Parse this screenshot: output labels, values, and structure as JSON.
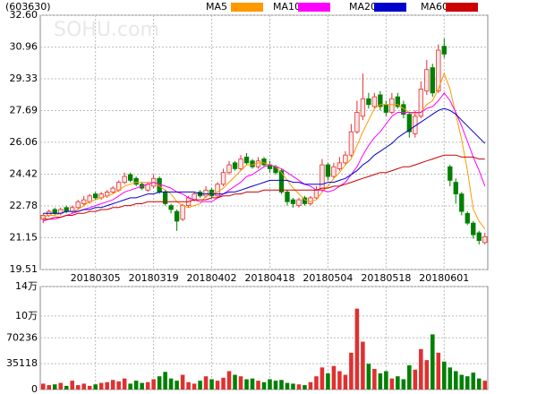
{
  "chart_data": {
    "type": "candlestick",
    "title": "(603630)",
    "watermark": "SOHU.com",
    "categories": [
      null,
      null,
      null,
      null,
      null,
      null,
      null,
      null,
      null,
      "20180305",
      null,
      null,
      null,
      null,
      null,
      null,
      null,
      null,
      null,
      "20180319",
      null,
      null,
      null,
      null,
      null,
      null,
      null,
      null,
      null,
      "20180402",
      null,
      null,
      null,
      null,
      null,
      null,
      null,
      null,
      null,
      "20180418",
      null,
      null,
      null,
      null,
      null,
      null,
      null,
      null,
      null,
      "20180504",
      null,
      null,
      null,
      null,
      null,
      null,
      null,
      null,
      null,
      "20180518",
      null,
      null,
      null,
      null,
      null,
      null,
      null,
      null,
      null,
      "20180601",
      null,
      null,
      null,
      null,
      null,
      null,
      null
    ],
    "open": [
      22.1,
      22.3,
      22.6,
      22.4,
      22.7,
      22.5,
      22.7,
      22.9,
      23.0,
      23.4,
      23.2,
      23.3,
      23.5,
      23.6,
      24.0,
      24.4,
      24.2,
      23.9,
      23.6,
      23.8,
      24.2,
      23.5,
      22.8,
      22.5,
      22.1,
      22.8,
      23.1,
      23.5,
      23.3,
      23.6,
      23.3,
      23.9,
      24.5,
      25.0,
      24.7,
      25.3,
      25.1,
      24.8,
      25.2,
      24.9,
      24.8,
      24.6,
      23.5,
      23.1,
      22.8,
      23.2,
      22.9,
      23.2,
      23.6,
      24.9,
      24.3,
      24.7,
      25.0,
      25.4,
      26.6,
      27.4,
      28.3,
      27.9,
      28.5,
      28.0,
      27.6,
      28.4,
      28.0,
      27.5,
      26.5,
      27.4,
      28.7,
      29.9,
      28.7,
      31.0,
      24.8,
      24.0,
      23.4,
      22.4,
      21.9,
      21.4,
      20.9
    ],
    "high": [
      22.4,
      22.6,
      22.7,
      22.7,
      22.8,
      22.8,
      23.1,
      23.3,
      23.4,
      23.5,
      23.5,
      23.6,
      23.8,
      24.1,
      24.5,
      24.5,
      24.3,
      24.0,
      24.0,
      24.4,
      24.3,
      23.6,
      22.9,
      22.6,
      22.9,
      23.3,
      23.5,
      23.6,
      23.8,
      23.7,
      24.0,
      24.7,
      25.1,
      25.1,
      25.4,
      25.5,
      25.2,
      25.3,
      25.3,
      25.1,
      24.9,
      24.7,
      23.6,
      23.2,
      23.2,
      23.3,
      23.3,
      23.8,
      25.2,
      25.0,
      25.0,
      25.3,
      25.6,
      27.0,
      28.2,
      29.6,
      28.6,
      28.6,
      28.7,
      28.2,
      28.6,
      28.6,
      28.2,
      27.6,
      27.7,
      29.2,
      30.3,
      30.1,
      31.1,
      31.4,
      24.9,
      24.2,
      23.5,
      22.5,
      22.0,
      21.5,
      21.4
    ],
    "low": [
      21.9,
      22.2,
      22.3,
      22.3,
      22.4,
      22.4,
      22.6,
      22.8,
      22.9,
      23.1,
      23.1,
      23.2,
      23.4,
      23.5,
      23.9,
      24.0,
      23.8,
      23.6,
      23.5,
      23.7,
      23.4,
      22.8,
      22.4,
      21.5,
      22.0,
      22.7,
      23.0,
      23.2,
      23.2,
      23.2,
      23.2,
      23.8,
      24.4,
      24.6,
      24.6,
      24.9,
      24.7,
      24.7,
      24.8,
      24.5,
      24.4,
      23.4,
      22.8,
      22.7,
      22.7,
      22.8,
      22.8,
      23.1,
      23.5,
      24.1,
      24.2,
      24.6,
      24.9,
      25.3,
      26.5,
      27.2,
      27.8,
      27.8,
      27.7,
      27.4,
      27.5,
      27.8,
      27.3,
      26.3,
      26.3,
      27.3,
      28.5,
      28.4,
      28.6,
      30.4,
      23.8,
      22.9,
      22.3,
      21.8,
      21.1,
      20.8,
      20.8
    ],
    "close": [
      22.3,
      22.5,
      22.4,
      22.6,
      22.5,
      22.7,
      23.0,
      23.1,
      23.3,
      23.2,
      23.4,
      23.5,
      23.7,
      24.0,
      24.3,
      24.1,
      23.9,
      23.7,
      23.9,
      24.2,
      23.5,
      22.9,
      22.6,
      22.0,
      22.8,
      23.2,
      23.4,
      23.3,
      23.6,
      23.3,
      23.9,
      24.5,
      24.9,
      24.7,
      25.2,
      25.0,
      24.8,
      25.1,
      24.9,
      24.7,
      24.5,
      23.5,
      23.0,
      22.9,
      23.1,
      22.9,
      23.2,
      23.6,
      24.9,
      24.3,
      24.8,
      25.0,
      25.4,
      26.6,
      27.6,
      28.3,
      28.0,
      28.4,
      27.9,
      27.6,
      28.3,
      27.9,
      27.5,
      26.6,
      27.4,
      28.8,
      29.8,
      28.6,
      30.8,
      30.6,
      24.1,
      23.4,
      22.5,
      21.9,
      21.3,
      21.0,
      21.2
    ],
    "up_color": "#e03030",
    "up_fill": "#ffe8e8",
    "down_color": "#008000",
    "series": [
      {
        "name": "MA5",
        "color": "#ff9900",
        "values": [
          22.2,
          22.3,
          22.3,
          22.4,
          22.5,
          22.5,
          22.6,
          22.8,
          23.0,
          23.1,
          23.2,
          23.3,
          23.4,
          23.6,
          23.8,
          23.9,
          24.0,
          24.0,
          24.0,
          24.0,
          23.8,
          23.6,
          23.4,
          23.0,
          22.8,
          22.7,
          22.8,
          22.9,
          23.3,
          23.4,
          23.5,
          23.7,
          24.0,
          24.3,
          24.6,
          24.9,
          24.9,
          25.0,
          25.0,
          24.9,
          24.8,
          24.5,
          24.1,
          23.7,
          23.4,
          23.1,
          23.0,
          23.1,
          23.5,
          23.8,
          24.2,
          24.5,
          24.9,
          25.2,
          25.9,
          26.6,
          27.2,
          27.8,
          28.0,
          28.0,
          28.0,
          28.0,
          27.8,
          27.6,
          27.5,
          27.6,
          28.0,
          28.2,
          28.8,
          29.6,
          28.8,
          27.5,
          26.2,
          24.6,
          22.6,
          22.0,
          21.6
        ]
      },
      {
        "name": "MA10",
        "color": "#ff00ff",
        "values": [
          22.0,
          22.1,
          22.1,
          22.2,
          22.3,
          22.4,
          22.5,
          22.6,
          22.7,
          22.8,
          22.9,
          23.0,
          23.1,
          23.3,
          23.5,
          23.6,
          23.7,
          23.8,
          23.9,
          24.0,
          23.9,
          23.8,
          23.7,
          23.5,
          23.4,
          23.2,
          23.1,
          23.0,
          23.0,
          23.0,
          23.2,
          23.4,
          23.6,
          23.8,
          24.0,
          24.3,
          24.4,
          24.6,
          24.8,
          24.9,
          24.8,
          24.7,
          24.5,
          24.3,
          24.1,
          23.9,
          23.8,
          23.6,
          23.6,
          23.5,
          23.6,
          23.8,
          24.0,
          24.4,
          24.8,
          25.4,
          25.9,
          26.3,
          26.6,
          27.0,
          27.4,
          27.6,
          27.6,
          27.6,
          27.6,
          27.6,
          27.8,
          27.9,
          28.2,
          28.6,
          28.2,
          27.6,
          26.9,
          26.1,
          25.3,
          24.6,
          23.8
        ]
      },
      {
        "name": "MA20",
        "color": "#0000cc",
        "values": [
          22.4,
          22.4,
          22.4,
          22.4,
          22.5,
          22.5,
          22.5,
          22.6,
          22.6,
          22.7,
          22.7,
          22.8,
          22.9,
          23.0,
          23.1,
          23.2,
          23.2,
          23.3,
          23.4,
          23.4,
          23.5,
          23.5,
          23.5,
          23.5,
          23.5,
          23.5,
          23.5,
          23.4,
          23.4,
          23.4,
          23.4,
          23.4,
          23.5,
          23.5,
          23.6,
          23.7,
          23.8,
          23.9,
          24.0,
          24.1,
          24.1,
          24.1,
          24.1,
          24.0,
          24.0,
          23.9,
          23.9,
          23.9,
          23.9,
          24.0,
          24.0,
          24.1,
          24.2,
          24.4,
          24.6,
          24.9,
          25.1,
          25.4,
          25.6,
          25.8,
          26.0,
          26.3,
          26.5,
          26.7,
          26.9,
          27.1,
          27.3,
          27.5,
          27.7,
          27.8,
          27.7,
          27.5,
          27.2,
          26.9,
          26.6,
          26.3,
          26.0
        ]
      },
      {
        "name": "MA60",
        "color": "#cc0000",
        "values": [
          22.1,
          22.1,
          22.2,
          22.2,
          22.3,
          22.3,
          22.4,
          22.4,
          22.5,
          22.5,
          22.6,
          22.6,
          22.7,
          22.7,
          22.8,
          22.8,
          22.9,
          22.9,
          23.0,
          23.0,
          23.0,
          23.0,
          23.0,
          23.0,
          23.0,
          23.0,
          23.1,
          23.1,
          23.1,
          23.2,
          23.2,
          23.3,
          23.3,
          23.4,
          23.4,
          23.5,
          23.5,
          23.5,
          23.6,
          23.6,
          23.6,
          23.6,
          23.6,
          23.6,
          23.6,
          23.6,
          23.6,
          23.6,
          23.7,
          23.7,
          23.8,
          23.8,
          23.9,
          24.0,
          24.1,
          24.2,
          24.3,
          24.4,
          24.5,
          24.5,
          24.6,
          24.7,
          24.8,
          24.8,
          24.9,
          25.0,
          25.1,
          25.2,
          25.3,
          25.4,
          25.4,
          25.4,
          25.3,
          25.3,
          25.3,
          25.2,
          25.2
        ]
      }
    ],
    "ylim": [
      19.51,
      32.6
    ],
    "yticks": [
      {
        "value": 32.6,
        "label": "32.60"
      },
      30.96,
      29.33,
      27.69,
      26.06,
      24.42,
      22.78,
      21.15,
      19.51
    ],
    "grid": true,
    "volume": {
      "values": [
        8000,
        6000,
        7000,
        9000,
        5000,
        12000,
        6000,
        8000,
        5000,
        7000,
        9000,
        10000,
        13000,
        11000,
        15000,
        8000,
        12000,
        9000,
        10000,
        14000,
        18000,
        24000,
        15000,
        12000,
        20000,
        10000,
        8000,
        12000,
        18000,
        14000,
        12000,
        16000,
        25000,
        20000,
        18000,
        14000,
        15000,
        12000,
        10000,
        14000,
        12000,
        13000,
        9000,
        8000,
        7000,
        6000,
        10000,
        18000,
        30000,
        22000,
        32000,
        25000,
        20000,
        50000,
        110000,
        65000,
        35000,
        28000,
        22000,
        25000,
        15000,
        18000,
        14000,
        33000,
        27000,
        55000,
        40000,
        75000,
        50000,
        38000,
        30000,
        25000,
        20000,
        18000,
        23000,
        15000,
        12000
      ],
      "ylim": [
        0,
        140000
      ],
      "yticks": [
        {
          "value": 140000,
          "label": "14万"
        },
        {
          "value": 100000,
          "label": "10万"
        },
        70236,
        35118,
        0
      ]
    }
  }
}
